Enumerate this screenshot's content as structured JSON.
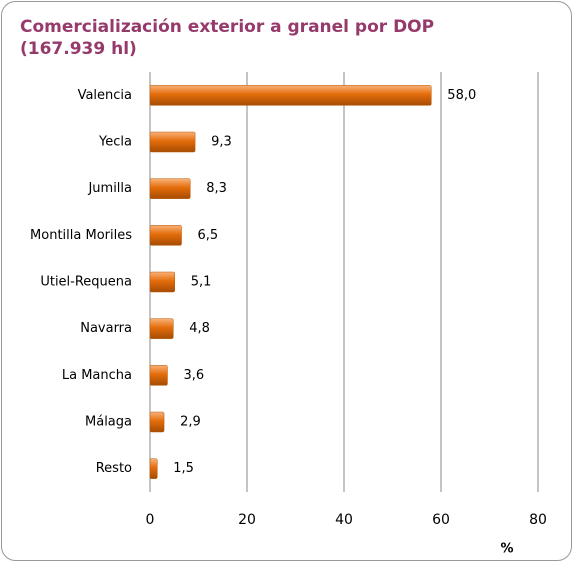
{
  "chart_data": {
    "type": "bar",
    "orientation": "horizontal",
    "title": "Comercialización exterior a granel por DOP (167.939 hl)",
    "categories": [
      "Valencia",
      "Yecla",
      "Jumilla",
      "Montilla Moriles",
      "Utiel-Requena",
      "Navarra",
      "La Mancha",
      "Málaga",
      "Resto"
    ],
    "values": [
      58.0,
      9.3,
      8.3,
      6.5,
      5.1,
      4.8,
      3.6,
      2.9,
      1.5
    ],
    "value_labels": [
      "58,0",
      "9,3",
      "8,3",
      "6,5",
      "5,1",
      "4,8",
      "3,6",
      "2,9",
      "1,5"
    ],
    "color": "#e46c0a",
    "xlim": [
      0,
      80
    ],
    "xticks": [
      0,
      20,
      40,
      60,
      80
    ],
    "x_label": "%",
    "grid": true
  }
}
